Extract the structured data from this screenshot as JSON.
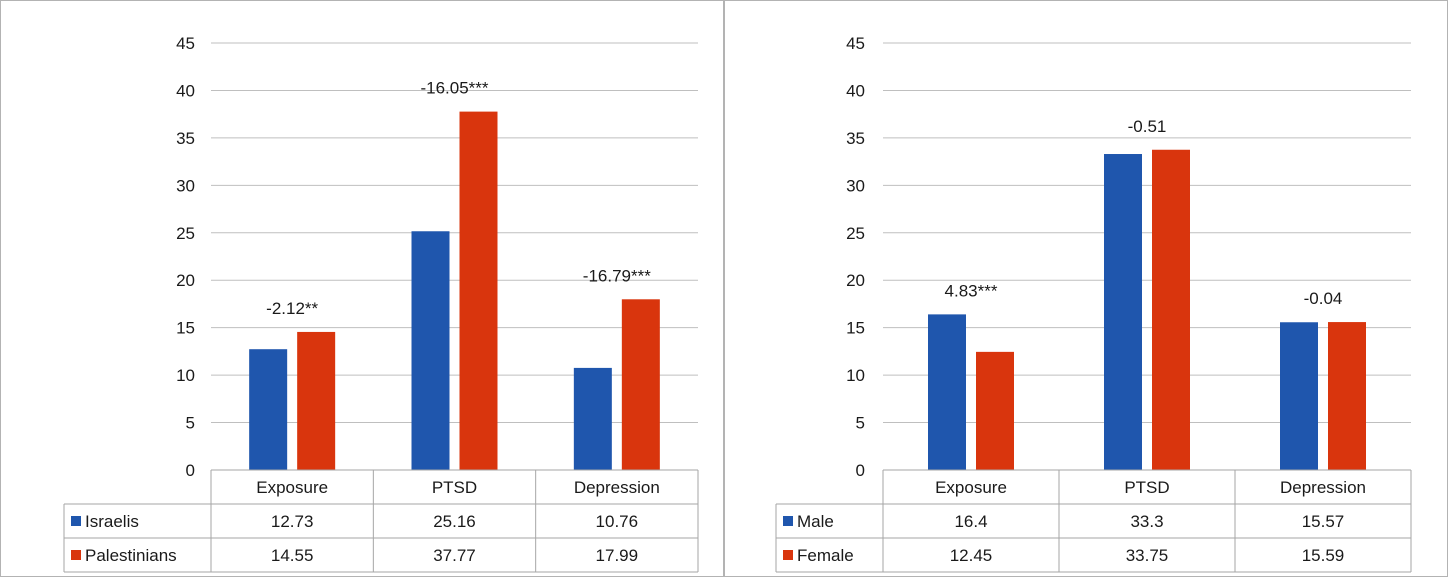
{
  "colors": {
    "series1": "#1f56ad",
    "series2": "#d9350d",
    "grid": "#bfbfbf",
    "border": "#a6a6a6",
    "frame": "#b3b3b3"
  },
  "chart_data": [
    {
      "type": "bar",
      "categories": [
        "Exposure",
        "PTSD",
        "Depression"
      ],
      "series": [
        {
          "name": "Israelis",
          "values": [
            12.73,
            25.16,
            10.76
          ]
        },
        {
          "name": "Palestinians",
          "values": [
            14.55,
            37.77,
            17.99
          ]
        }
      ],
      "annotations": [
        "-2.12**",
        "-16.05***",
        "-16.79***"
      ],
      "ylim": [
        0,
        45
      ],
      "yticks": [
        0,
        5,
        10,
        15,
        20,
        25,
        30,
        35,
        40,
        45
      ],
      "grid": true,
      "legend": "data-table"
    },
    {
      "type": "bar",
      "categories": [
        "Exposure",
        "PTSD",
        "Depression"
      ],
      "series": [
        {
          "name": "Male",
          "values": [
            16.4,
            33.3,
            15.57
          ]
        },
        {
          "name": "Female",
          "values": [
            12.45,
            33.75,
            15.59
          ]
        }
      ],
      "annotations": [
        "4.83***",
        "-0.51",
        "-0.04"
      ],
      "ylim": [
        0,
        45
      ],
      "yticks": [
        0,
        5,
        10,
        15,
        20,
        25,
        30,
        35,
        40,
        45
      ],
      "grid": true,
      "legend": "data-table"
    }
  ]
}
